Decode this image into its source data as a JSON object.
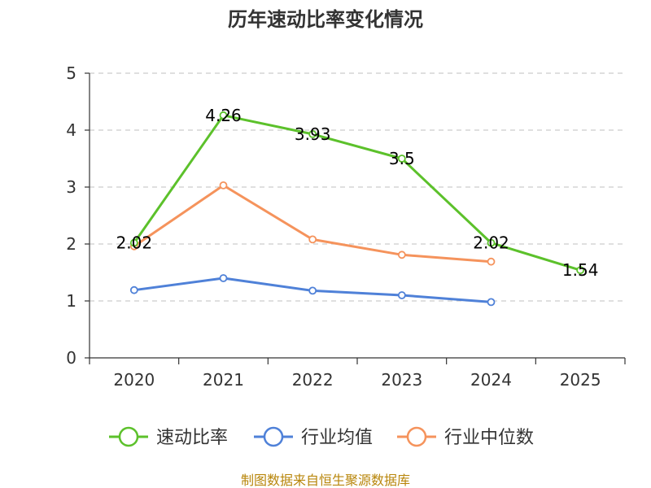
{
  "chart_data": {
    "type": "line",
    "title": "历年速动比率变化情况",
    "categories": [
      "2020",
      "2021",
      "2022",
      "2023",
      "2024",
      "2025"
    ],
    "ylim": [
      0,
      5
    ],
    "yticks": [
      "0",
      "1",
      "2",
      "3",
      "4",
      "5"
    ],
    "grid": true,
    "legend_position": "bottom",
    "series": [
      {
        "name": "速动比率",
        "color": "#5cc12b",
        "values": [
          2.02,
          4.26,
          3.93,
          3.5,
          2.02,
          1.54
        ],
        "labels": [
          "2.02",
          "4.26",
          "3.93",
          "3.5",
          "2.02",
          "1.54"
        ]
      },
      {
        "name": "行业均值",
        "color": "#4f81d8",
        "values": [
          1.19,
          1.4,
          1.18,
          1.1,
          0.98,
          null
        ]
      },
      {
        "name": "行业中位数",
        "color": "#f5935c",
        "values": [
          1.96,
          3.03,
          2.08,
          1.81,
          1.69,
          null
        ]
      }
    ],
    "source": "制图数据来自恒生聚源数据库"
  }
}
